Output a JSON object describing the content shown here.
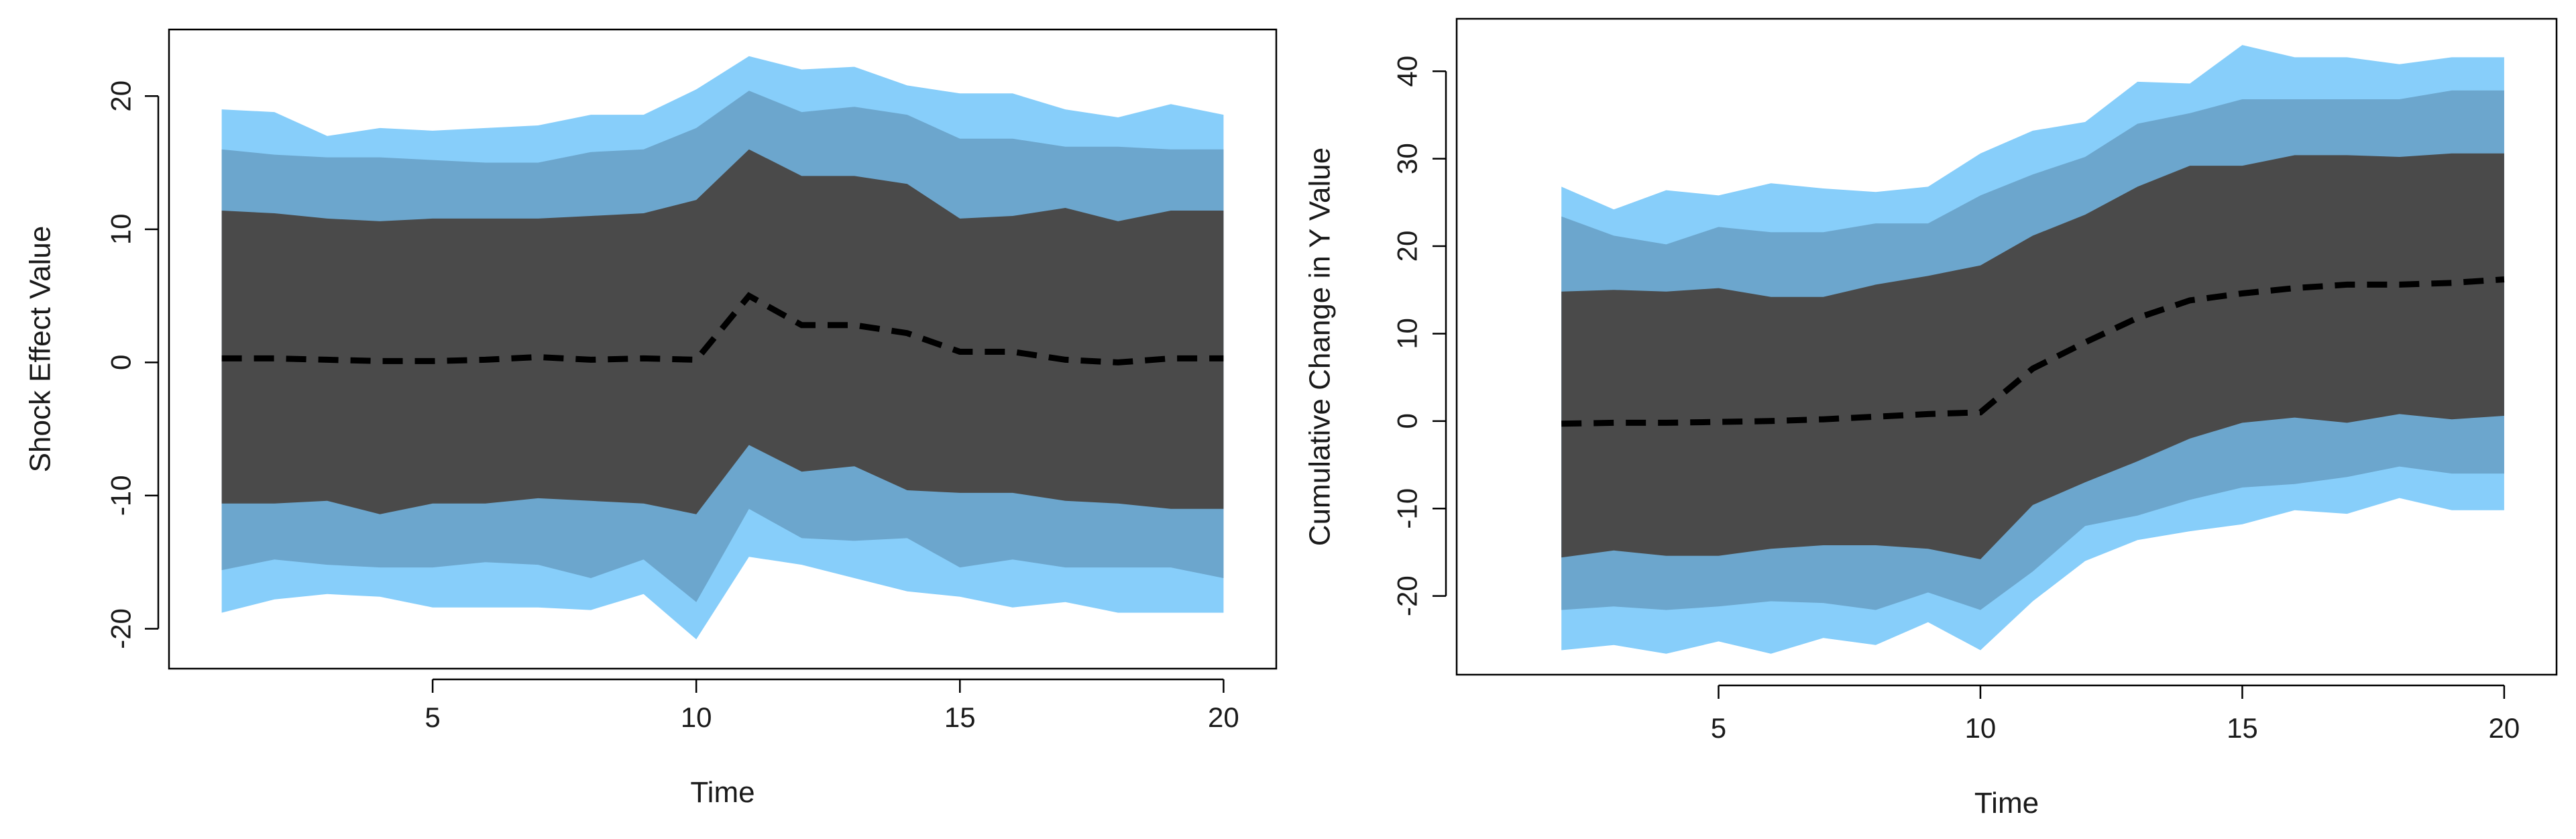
{
  "colors": {
    "outer_band": "#87CEFA",
    "middle_band": "#6CA6CD",
    "inner_band": "#4A4A4A",
    "median_line": "#000000"
  },
  "chart_data": [
    {
      "type": "area",
      "title": "",
      "xlabel": "Time",
      "ylabel": "Shock Effect Value",
      "xlim": [
        0,
        21
      ],
      "ylim": [
        -23,
        25
      ],
      "xticks": [
        5,
        10,
        15,
        20
      ],
      "yticks": [
        -20,
        -10,
        0,
        10,
        20
      ],
      "x": [
        1,
        2,
        3,
        4,
        5,
        6,
        7,
        8,
        9,
        10,
        11,
        12,
        13,
        14,
        15,
        16,
        17,
        18,
        19,
        20
      ],
      "median": [
        0.3,
        0.3,
        0.2,
        0.1,
        0.1,
        0.2,
        0.4,
        0.2,
        0.3,
        0.2,
        5.0,
        2.8,
        2.8,
        2.2,
        0.8,
        0.8,
        0.2,
        0.0,
        0.3,
        0.3
      ],
      "bands": [
        {
          "name": "outer",
          "upper": [
            19.0,
            18.8,
            17.0,
            17.6,
            17.4,
            17.6,
            17.8,
            18.6,
            18.6,
            20.5,
            23.0,
            22.0,
            22.2,
            20.8,
            20.2,
            20.2,
            19.0,
            18.4,
            19.4,
            18.6
          ],
          "lower": [
            -18.8,
            -17.8,
            -17.4,
            -17.6,
            -18.4,
            -18.4,
            -18.4,
            -18.6,
            -17.4,
            -20.8,
            -14.6,
            -15.2,
            -16.2,
            -17.2,
            -17.6,
            -18.4,
            -18.0,
            -18.8,
            -18.8,
            -18.8
          ]
        },
        {
          "name": "middle",
          "upper": [
            16.0,
            15.6,
            15.4,
            15.4,
            15.2,
            15.0,
            15.0,
            15.8,
            16.0,
            17.6,
            20.4,
            18.8,
            19.2,
            18.6,
            16.8,
            16.8,
            16.2,
            16.2,
            16.0,
            16.0
          ],
          "lower": [
            -15.6,
            -14.8,
            -15.2,
            -15.4,
            -15.4,
            -15.0,
            -15.2,
            -16.2,
            -14.8,
            -18.0,
            -11.0,
            -13.2,
            -13.4,
            -13.2,
            -15.4,
            -14.8,
            -15.4,
            -15.4,
            -15.4,
            -16.2
          ]
        },
        {
          "name": "inner",
          "upper": [
            11.4,
            11.2,
            10.8,
            10.6,
            10.8,
            10.8,
            10.8,
            11.0,
            11.2,
            12.2,
            16.0,
            14.0,
            14.0,
            13.4,
            10.8,
            11.0,
            11.6,
            10.6,
            11.4,
            11.4
          ],
          "lower": [
            -10.6,
            -10.6,
            -10.4,
            -11.4,
            -10.6,
            -10.6,
            -10.2,
            -10.4,
            -10.6,
            -11.4,
            -6.2,
            -8.2,
            -7.8,
            -9.6,
            -9.8,
            -9.8,
            -10.4,
            -10.6,
            -11.0,
            -11.0
          ]
        }
      ]
    },
    {
      "type": "area",
      "title": "",
      "xlabel": "Time",
      "ylabel": "Cumulative Change in Y Value",
      "xlim": [
        0,
        21
      ],
      "ylim": [
        -29,
        46
      ],
      "xticks": [
        5,
        10,
        15,
        20
      ],
      "yticks": [
        -20,
        -10,
        0,
        10,
        20,
        30,
        40
      ],
      "x": [
        2,
        3,
        4,
        5,
        6,
        7,
        8,
        9,
        10,
        11,
        12,
        13,
        14,
        15,
        16,
        17,
        18,
        19,
        20
      ],
      "median": [
        -0.3,
        -0.2,
        -0.2,
        -0.1,
        0.0,
        0.2,
        0.5,
        0.8,
        1.0,
        6.0,
        9.0,
        11.8,
        13.8,
        14.6,
        15.2,
        15.6,
        15.6,
        15.8,
        16.2
      ],
      "bands": [
        {
          "name": "outer",
          "upper": [
            26.8,
            24.2,
            26.4,
            25.8,
            27.2,
            26.6,
            26.2,
            26.8,
            30.6,
            33.2,
            34.2,
            38.8,
            38.6,
            43.0,
            41.6,
            41.6,
            40.8,
            41.6,
            41.6
          ],
          "lower": [
            -26.2,
            -25.6,
            -26.6,
            -25.2,
            -26.6,
            -24.8,
            -25.6,
            -23.0,
            -26.2,
            -20.6,
            -16.0,
            -13.6,
            -12.6,
            -11.8,
            -10.2,
            -10.6,
            -8.8,
            -10.2,
            -10.2
          ]
        },
        {
          "name": "middle",
          "upper": [
            23.4,
            21.2,
            20.2,
            22.2,
            21.6,
            21.6,
            22.6,
            22.6,
            25.8,
            28.2,
            30.2,
            34.0,
            35.2,
            36.8,
            36.8,
            36.8,
            36.8,
            37.8,
            37.8
          ],
          "lower": [
            -21.6,
            -21.2,
            -21.6,
            -21.2,
            -20.6,
            -20.8,
            -21.6,
            -19.6,
            -21.6,
            -17.2,
            -12.0,
            -10.8,
            -9.0,
            -7.6,
            -7.2,
            -6.4,
            -5.2,
            -6.0,
            -6.0
          ]
        },
        {
          "name": "inner",
          "upper": [
            14.8,
            15.0,
            14.8,
            15.2,
            14.2,
            14.2,
            15.6,
            16.6,
            17.8,
            21.2,
            23.6,
            26.8,
            29.2,
            29.2,
            30.4,
            30.4,
            30.2,
            30.6,
            30.6
          ],
          "lower": [
            -15.6,
            -14.8,
            -15.4,
            -15.4,
            -14.6,
            -14.2,
            -14.2,
            -14.6,
            -15.8,
            -9.6,
            -7.0,
            -4.6,
            -2.0,
            -0.2,
            0.4,
            -0.2,
            0.8,
            0.2,
            0.6
          ]
        }
      ]
    }
  ]
}
